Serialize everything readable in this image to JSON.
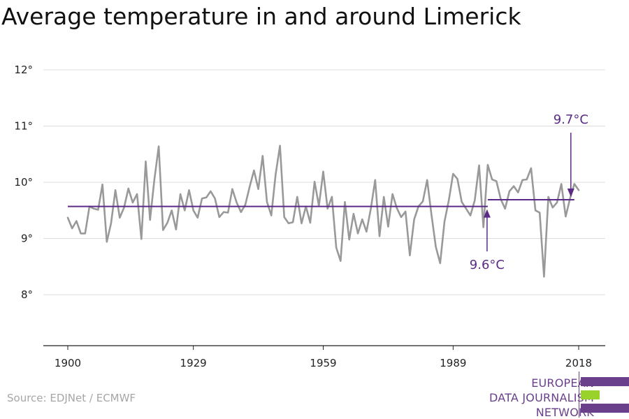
{
  "title": "Average temperature in and around Limerick",
  "source": "Source: EDJNet / ECMWF",
  "logo": {
    "lines": [
      "EUROPEAN",
      "DATA JOURNALISM",
      "NETWORK"
    ],
    "colors": [
      "#6a3f8c",
      "#9ad22c",
      "#6a3f8c"
    ]
  },
  "colors": {
    "series": "#999999",
    "reference": "#5b2a86",
    "grid": "#dcdcdc",
    "axis": "#222222"
  },
  "chart_data": {
    "type": "line",
    "title": "Average temperature in and around Limerick",
    "xlabel": "",
    "ylabel": "",
    "xlim": [
      1900,
      2018
    ],
    "ylim": [
      7.1,
      12.4
    ],
    "x_ticks": [
      1900,
      1929,
      1959,
      1989,
      2018
    ],
    "x_tick_labels": [
      "1900",
      "1929",
      "1959",
      "1989",
      "2018"
    ],
    "y_ticks": [
      8,
      9,
      10,
      11,
      12
    ],
    "y_tick_labels": [
      "8°",
      "9°",
      "10°",
      "11°",
      "12°"
    ],
    "grid": true,
    "series": [
      {
        "name": "",
        "x": [
          1900,
          1901,
          1902,
          1903,
          1904,
          1905,
          1906,
          1907,
          1908,
          1909,
          1910,
          1911,
          1912,
          1913,
          1914,
          1915,
          1916,
          1917,
          1918,
          1919,
          1920,
          1921,
          1922,
          1923,
          1924,
          1925,
          1926,
          1927,
          1928,
          1929,
          1930,
          1931,
          1932,
          1933,
          1934,
          1935,
          1936,
          1937,
          1938,
          1939,
          1940,
          1941,
          1942,
          1943,
          1944,
          1945,
          1946,
          1947,
          1948,
          1949,
          1950,
          1951,
          1952,
          1953,
          1954,
          1955,
          1956,
          1957,
          1958,
          1959,
          1960,
          1961,
          1962,
          1963,
          1964,
          1965,
          1966,
          1967,
          1968,
          1969,
          1970,
          1971,
          1972,
          1973,
          1974,
          1975,
          1976,
          1977,
          1978,
          1979,
          1980,
          1981,
          1982,
          1983,
          1984,
          1985,
          1986,
          1987,
          1988,
          1989,
          1990,
          1991,
          1992,
          1993,
          1994,
          1995,
          1996,
          1997,
          1998,
          1999,
          2000,
          2001,
          2002,
          2003,
          2004,
          2005,
          2006,
          2007,
          2008,
          2009,
          2010,
          2011,
          2012,
          2013,
          2014,
          2015,
          2016,
          2017,
          2018
        ],
        "values": [
          9.37,
          9.18,
          9.31,
          9.09,
          9.09,
          9.57,
          9.53,
          9.51,
          9.96,
          8.94,
          9.27,
          9.86,
          9.37,
          9.55,
          9.89,
          9.64,
          9.79,
          8.99,
          10.37,
          9.33,
          10.05,
          10.64,
          9.15,
          9.28,
          9.5,
          9.16,
          9.79,
          9.5,
          9.86,
          9.5,
          9.37,
          9.71,
          9.73,
          9.84,
          9.71,
          9.38,
          9.47,
          9.46,
          9.88,
          9.64,
          9.47,
          9.6,
          9.92,
          10.21,
          9.88,
          10.47,
          9.65,
          9.41,
          10.14,
          10.65,
          9.38,
          9.27,
          9.29,
          9.74,
          9.27,
          9.57,
          9.28,
          10.01,
          9.58,
          10.19,
          9.53,
          9.74,
          8.84,
          8.6,
          9.65,
          8.98,
          9.44,
          9.09,
          9.34,
          9.12,
          9.53,
          10.04,
          9.04,
          9.74,
          9.21,
          9.79,
          9.54,
          9.38,
          9.48,
          8.7,
          9.34,
          9.57,
          9.66,
          10.04,
          9.42,
          8.85,
          8.56,
          9.3,
          9.68,
          10.15,
          10.06,
          9.65,
          9.53,
          9.41,
          9.68,
          10.3,
          9.2,
          10.31,
          10.05,
          10.02,
          9.7,
          9.53,
          9.84,
          9.93,
          9.82,
          10.04,
          10.05,
          10.25,
          9.5,
          9.46,
          8.32,
          9.74,
          9.55,
          9.64,
          9.97,
          9.39,
          9.71,
          9.97,
          9.86
        ]
      }
    ],
    "reference_lines": [
      {
        "label": "9.6°C",
        "value": 9.57,
        "x_start": 1900,
        "x_end": 1997
      },
      {
        "label": "9.7°C",
        "value": 9.69,
        "x_start": 1997,
        "x_end": 2017
      }
    ]
  }
}
